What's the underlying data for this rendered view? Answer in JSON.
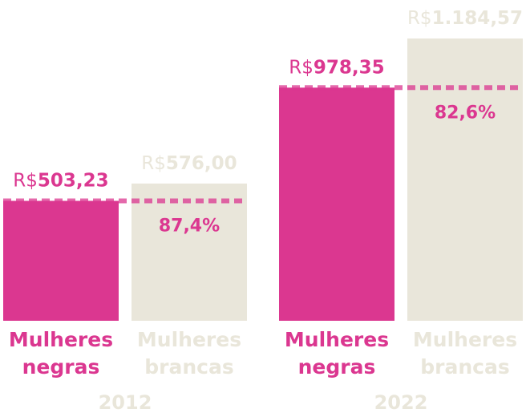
{
  "chart_data": {
    "type": "bar",
    "colors": {
      "negras": "#DB3790",
      "brancas": "#E9E6DA"
    },
    "groups": [
      {
        "year": "2012",
        "ratio_label": "87,4%",
        "bars": [
          {
            "series": "negras",
            "label_line1": "Mulheres",
            "label_line2": "negras",
            "value": 503.23,
            "value_prefix": "R$",
            "value_text": "503,23"
          },
          {
            "series": "brancas",
            "label_line1": "Mulheres",
            "label_line2": "brancas",
            "value": 576.0,
            "value_prefix": "R$",
            "value_text": "576,00"
          }
        ]
      },
      {
        "year": "2022",
        "ratio_label": "82,6%",
        "bars": [
          {
            "series": "negras",
            "label_line1": "Mulheres",
            "label_line2": "negras",
            "value": 978.35,
            "value_prefix": "R$",
            "value_text": "978,35"
          },
          {
            "series": "brancas",
            "label_line1": "Mulheres",
            "label_line2": "brancas",
            "value": 1184.57,
            "value_prefix": "R$",
            "value_text": "1.184,57"
          }
        ]
      }
    ],
    "ylim": [
      0,
      1184.57
    ],
    "grid": false,
    "legend": "none"
  }
}
